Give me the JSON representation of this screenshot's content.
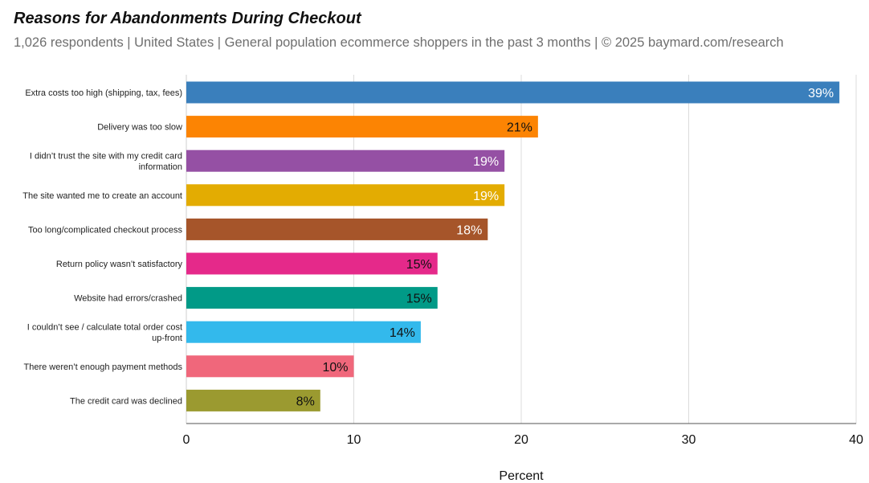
{
  "chart_data": {
    "type": "bar",
    "orientation": "horizontal",
    "title": "Reasons for Abandonments During Checkout",
    "subtitle": "1,026 respondents  |  United States  |  General population ecommerce shoppers in the past 3 months | © 2025 baymard.com/research",
    "xlabel": "Percent",
    "ylabel": "",
    "xlim": [
      0,
      40
    ],
    "xticks": [
      0,
      10,
      20,
      30,
      40
    ],
    "grid": "vertical",
    "legend": "none",
    "categories": [
      [
        "Extra costs too high (shipping, tax, fees)"
      ],
      [
        "Delivery was too slow"
      ],
      [
        "I didn’t trust the site with my credit card",
        "information"
      ],
      [
        "The site wanted me to create an account"
      ],
      [
        "Too long/complicated checkout process"
      ],
      [
        "Return policy wasn’t satisfactory"
      ],
      [
        "Website had errors/crashed"
      ],
      [
        "I couldn’t see / calculate total order cost",
        "up-front"
      ],
      [
        "There weren’t enough payment methods"
      ],
      [
        "The credit card was declined"
      ]
    ],
    "values": [
      39,
      21,
      19,
      19,
      18,
      15,
      15,
      14,
      10,
      8
    ],
    "value_labels": [
      "39%",
      "21%",
      "19%",
      "19%",
      "18%",
      "15%",
      "15%",
      "14%",
      "10%",
      "8%"
    ],
    "colors": [
      "#3a7fbc",
      "#fc8403",
      "#9550a4",
      "#e3ac02",
      "#a6552a",
      "#e5298a",
      "#019a87",
      "#33b9ec",
      "#f0677b",
      "#9b9a30"
    ],
    "label_colors": [
      "#ffffff",
      "#111111",
      "#ffffff",
      "#ffffff",
      "#ffffff",
      "#111111",
      "#111111",
      "#111111",
      "#111111",
      "#111111"
    ]
  }
}
